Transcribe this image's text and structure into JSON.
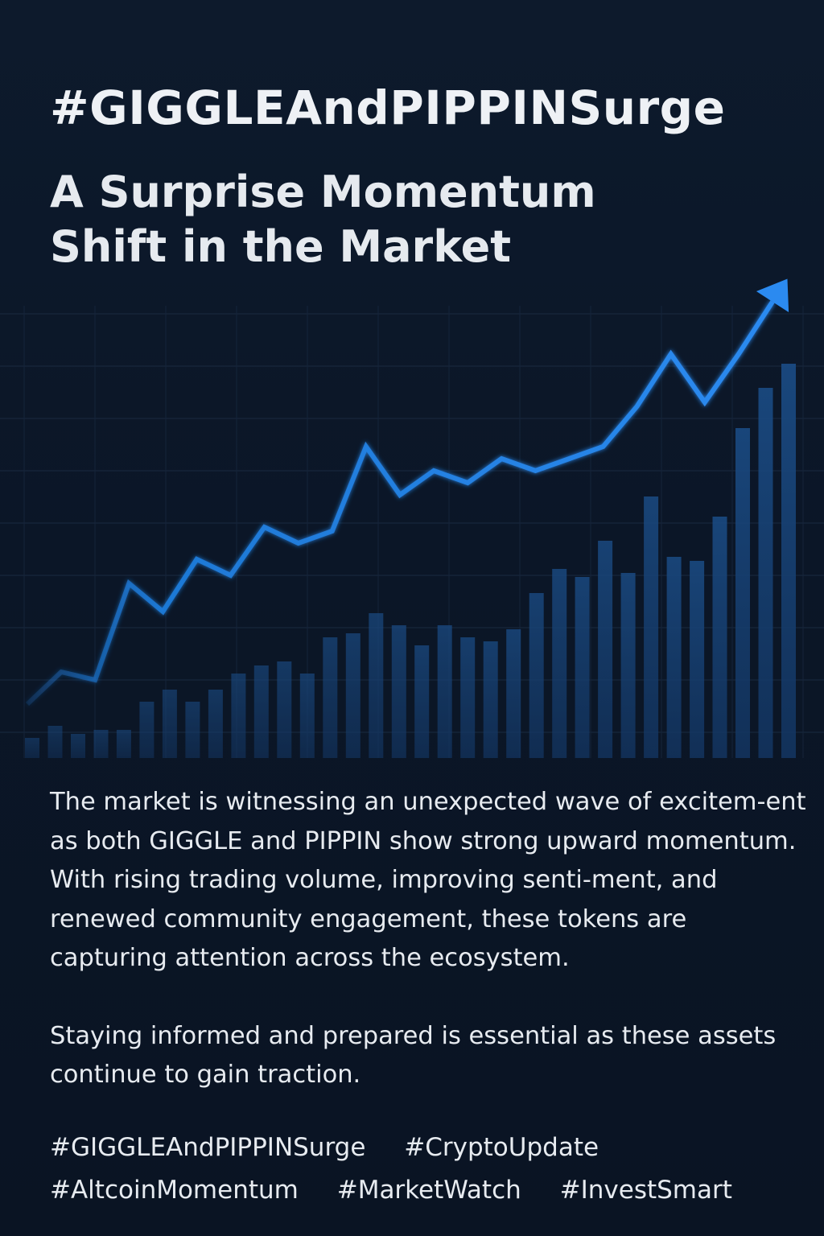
{
  "headline": "#GIGGLEAndPIPPINSurge",
  "subtitle": [
    "A Surprise Momentum",
    "Shift in the Market"
  ],
  "body": [
    "The market is witnessing an unexpected wave of excitem-ent as both GIGGLE and PIPPIN show strong upward momentum. With rising trading volume, improving senti-ment, and renewed community engagement, these tokens are capturing attention across the ecosystem.",
    "Staying informed and prepared is essential as these assets continue to gain traction."
  ],
  "hashtags": [
    [
      "#GIGGLEAndPIPPINSurge",
      "#CryptoUpdate"
    ],
    [
      "#AltcoinMomentum",
      "#MarketWatch",
      "#InvestSmart"
    ]
  ],
  "colors": {
    "background": "#0b1627",
    "line": "#1f7fe0",
    "bars": "#173e6e",
    "text": "#e9edf2"
  },
  "chart_data": {
    "type": "bar",
    "grid": true,
    "bars": [
      5,
      8,
      6,
      7,
      7,
      14,
      17,
      14,
      17,
      21,
      23,
      24,
      21,
      30,
      31,
      36,
      33,
      28,
      33,
      30,
      29,
      32,
      41,
      47,
      45,
      54,
      46,
      65,
      50,
      49,
      60,
      82,
      92,
      98
    ],
    "line": [
      11,
      19,
      17,
      41,
      34,
      47,
      43,
      55,
      51,
      54,
      75,
      63,
      69,
      66,
      72,
      69,
      72,
      75,
      85,
      98,
      86,
      98,
      111
    ],
    "trend_arrow": true
  }
}
